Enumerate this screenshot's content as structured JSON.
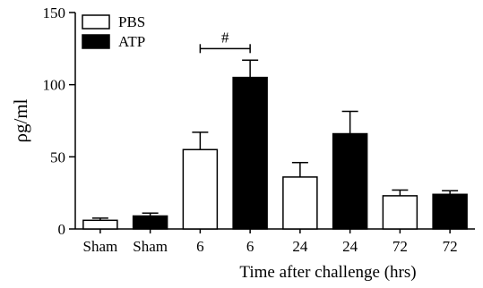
{
  "chart_data": {
    "type": "bar",
    "title": "",
    "xlabel": "Time after challenge (hrs)",
    "ylabel": "ρg/ml",
    "ylim": [
      0,
      150
    ],
    "yticks": [
      "0",
      "50",
      "100",
      "150"
    ],
    "categories": [
      "Sham",
      "Sham",
      "6",
      "6",
      "24",
      "24",
      "72",
      "72"
    ],
    "groups": [
      "PBS",
      "ATP",
      "PBS",
      "ATP",
      "PBS",
      "ATP",
      "PBS",
      "ATP"
    ],
    "values": [
      6,
      9,
      55,
      105,
      36,
      66,
      23,
      24
    ],
    "errors": [
      1.5,
      2,
      12,
      12,
      10,
      15.5,
      4,
      2.5
    ],
    "legend": {
      "placement": "top-left",
      "entries": [
        {
          "name": "PBS",
          "fill": "#ffffff"
        },
        {
          "name": "ATP",
          "fill": "#000000"
        }
      ]
    },
    "annotations": [
      {
        "text": "#",
        "from_bar": 2,
        "to_bar": 3,
        "value": 125
      }
    ],
    "grid": false
  }
}
